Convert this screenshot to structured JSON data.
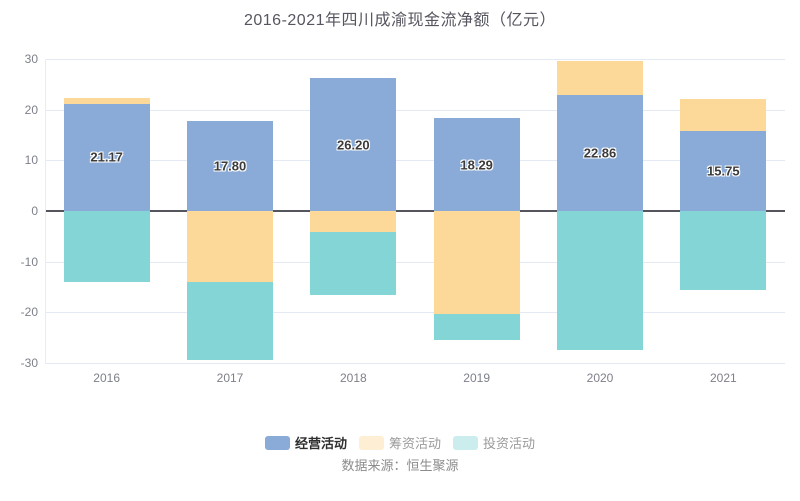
{
  "chart_data": {
    "type": "bar",
    "stacked": true,
    "title": "2016-2021年四川成渝现金流净额（亿元）",
    "categories": [
      "2016",
      "2017",
      "2018",
      "2019",
      "2020",
      "2021"
    ],
    "series": [
      {
        "name": "经营活动",
        "color": "#8aabd8",
        "values": [
          21.17,
          17.8,
          26.2,
          18.29,
          22.86,
          15.75
        ],
        "labels": [
          "21.17",
          "17.80",
          "26.20",
          "18.29",
          "22.86",
          "15.75"
        ]
      },
      {
        "name": "筹资活动",
        "color": "#fcd999",
        "values": [
          1.05,
          -13.97,
          -4.1,
          -20.4,
          6.7,
          6.3
        ]
      },
      {
        "name": "投资活动",
        "color": "#84d5d6",
        "values": [
          -14.03,
          -15.48,
          -12.5,
          -5.15,
          -27.5,
          -15.5
        ]
      }
    ],
    "y_ticks": [
      30,
      20,
      10,
      0,
      -10,
      -20,
      -30
    ],
    "ylim": [
      -30,
      30
    ],
    "grid": true,
    "legend_position": "bottom",
    "legend_active": "经营活动",
    "source": "数据来源：恒生聚源"
  }
}
